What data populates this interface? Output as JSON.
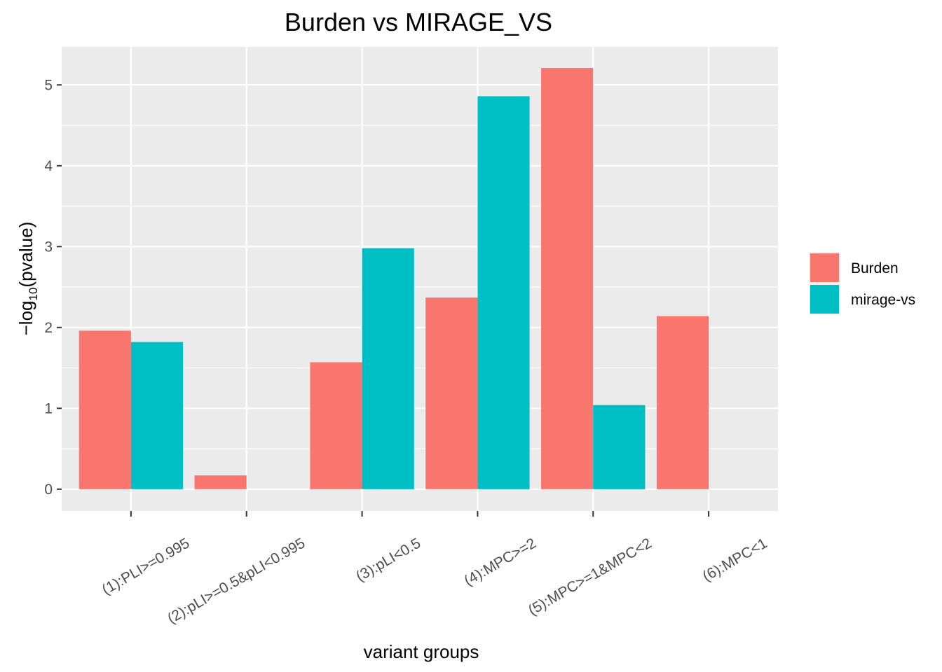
{
  "chart_data": {
    "type": "bar",
    "title": "Burden vs MIRAGE_VS",
    "xlabel": "variant groups",
    "ylabel": {
      "prefix": "−log",
      "subscript": "10",
      "suffix": "(pvalue)"
    },
    "categories": [
      "(1):PLI>=0.995",
      "(2):pLI>=0.5&pLI<0.995",
      "(3):pLI<0.5",
      "(4):MPC>=2",
      "(5):MPC>=1&MPC<2",
      "(6):MPC<1"
    ],
    "series": [
      {
        "name": "Burden",
        "color": "#F8766D",
        "values": [
          1.96,
          0.17,
          1.57,
          2.37,
          5.21,
          2.14
        ]
      },
      {
        "name": "mirage-vs",
        "color": "#00BFC4",
        "values": [
          1.82,
          null,
          2.98,
          4.86,
          1.04,
          null
        ]
      }
    ],
    "ylim": [
      -0.27,
      5.47
    ],
    "yticks": [
      0,
      1,
      2,
      3,
      4,
      5
    ],
    "grid": true,
    "legend_position": "right",
    "panel_background": "#EBEBEB"
  }
}
